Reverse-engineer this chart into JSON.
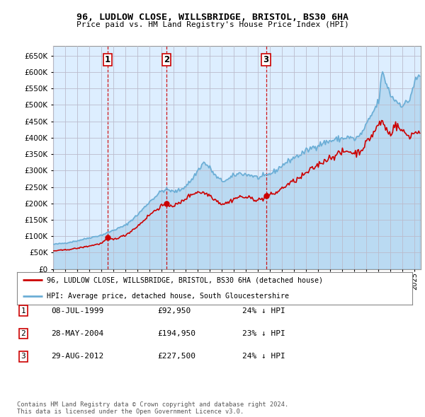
{
  "title": "96, LUDLOW CLOSE, WILLSBRIDGE, BRISTOL, BS30 6HA",
  "subtitle": "Price paid vs. HM Land Registry's House Price Index (HPI)",
  "ytick_values": [
    0,
    50000,
    100000,
    150000,
    200000,
    250000,
    300000,
    350000,
    400000,
    450000,
    500000,
    550000,
    600000,
    650000
  ],
  "xlim_start": 1995.0,
  "xlim_end": 2025.5,
  "ylim": [
    0,
    680000
  ],
  "transactions": [
    {
      "label": "1",
      "date": 1999.53,
      "price": 92950
    },
    {
      "label": "2",
      "date": 2004.41,
      "price": 194950
    },
    {
      "label": "3",
      "date": 2012.66,
      "price": 227500
    }
  ],
  "vline_dates": [
    1999.53,
    2004.41,
    2012.66
  ],
  "hpi_color": "#6baed6",
  "hpi_fill_color": "#d0e8f5",
  "price_color": "#cc0000",
  "vline_color": "#cc0000",
  "grid_color": "#bbbbcc",
  "bg_color": "#ffffff",
  "chart_bg_color": "#ddeeff",
  "legend_label_price": "96, LUDLOW CLOSE, WILLSBRIDGE, BRISTOL, BS30 6HA (detached house)",
  "legend_label_hpi": "HPI: Average price, detached house, South Gloucestershire",
  "table_rows": [
    {
      "num": "1",
      "date": "08-JUL-1999",
      "price": "£92,950",
      "hpi": "24% ↓ HPI"
    },
    {
      "num": "2",
      "date": "28-MAY-2004",
      "price": "£194,950",
      "hpi": "23% ↓ HPI"
    },
    {
      "num": "3",
      "date": "29-AUG-2012",
      "price": "£227,500",
      "hpi": "24% ↓ HPI"
    }
  ],
  "footnote": "Contains HM Land Registry data © Crown copyright and database right 2024.\nThis data is licensed under the Open Government Licence v3.0."
}
